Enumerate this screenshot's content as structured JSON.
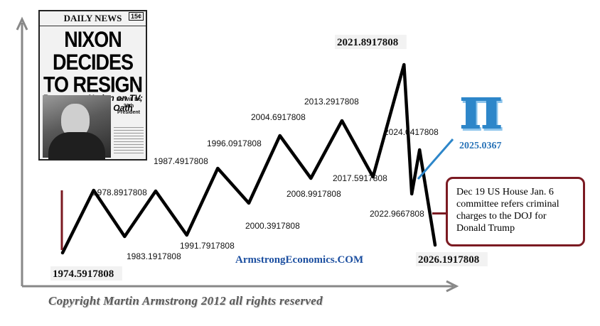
{
  "newspaper": {
    "masthead": "DAILY NEWS",
    "price": "15¢",
    "headline_line1": "NIXON DECIDES",
    "headline_line2": "TO RESIGN",
    "subhead_line1": "Reports to Nation on TV;",
    "subhead_line2": "Ford Will Take Oath Today",
    "sidebar": "He Will Be 38th President"
  },
  "annotation": {
    "text": "Dec 19 US House Jan. 6 committee refers criminal charges to the DOJ for Donald Trump",
    "border_color": "#7b1a22"
  },
  "pi_marker": {
    "symbol": "π",
    "label": "2025.0367",
    "color": "#2d86c9"
  },
  "watermark": "ArmstrongEconomics.COM",
  "copyright": "Copyright Martin Armstrong 2012 all rights reserved",
  "chart_data": {
    "type": "line",
    "title": "",
    "xlabel": "",
    "ylabel": "",
    "axis_color": "#888888",
    "line_color": "#000000",
    "points": [
      {
        "x": 1974.5917808,
        "label": "1974.5917808",
        "kind": "low",
        "emphasis": true
      },
      {
        "x": 1978.8917808,
        "label": "1978.8917808",
        "kind": "high"
      },
      {
        "x": 1983.1917808,
        "label": "1983.1917808",
        "kind": "low"
      },
      {
        "x": 1987.4917808,
        "label": "1987.4917808",
        "kind": "high"
      },
      {
        "x": 1991.7917808,
        "label": "1991.7917808",
        "kind": "low"
      },
      {
        "x": 1996.0917808,
        "label": "1996.0917808",
        "kind": "high"
      },
      {
        "x": 2000.3917808,
        "label": "2000.3917808",
        "kind": "low"
      },
      {
        "x": 2004.6917808,
        "label": "2004.6917808",
        "kind": "high"
      },
      {
        "x": 2008.9917808,
        "label": "2008.9917808",
        "kind": "low"
      },
      {
        "x": 2013.2917808,
        "label": "2013.2917808",
        "kind": "high"
      },
      {
        "x": 2017.5917808,
        "label": "2017.5917808",
        "kind": "low"
      },
      {
        "x": 2021.8917808,
        "label": "2021.8917808",
        "kind": "high",
        "emphasis": true
      },
      {
        "x": 2022.9667808,
        "label": "2022.9667808",
        "kind": "low"
      },
      {
        "x": 2024.0417808,
        "label": "2024.0417808",
        "kind": "high"
      },
      {
        "x": 2026.1917808,
        "label": "2026.1917808",
        "kind": "low",
        "emphasis": true
      }
    ],
    "marker_start": {
      "x": 1974.5917808,
      "color": "#7b1a22"
    }
  }
}
